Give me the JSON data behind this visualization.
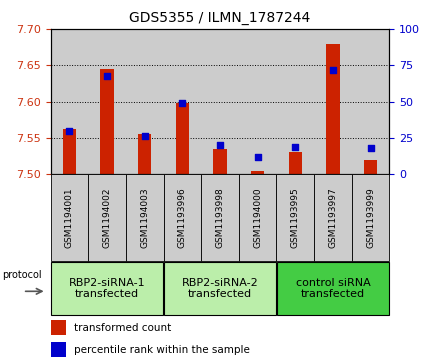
{
  "title": "GDS5355 / ILMN_1787244",
  "samples": [
    "GSM1194001",
    "GSM1194002",
    "GSM1194003",
    "GSM1193996",
    "GSM1193998",
    "GSM1194000",
    "GSM1193995",
    "GSM1193997",
    "GSM1193999"
  ],
  "red_values": [
    7.562,
    7.645,
    7.555,
    7.598,
    7.535,
    7.505,
    7.53,
    7.68,
    7.52
  ],
  "blue_values": [
    30,
    68,
    26,
    49,
    20,
    12,
    19,
    72,
    18
  ],
  "ylim_left": [
    7.5,
    7.7
  ],
  "ylim_right": [
    0,
    100
  ],
  "yticks_left": [
    7.5,
    7.55,
    7.6,
    7.65,
    7.7
  ],
  "yticks_right": [
    0,
    25,
    50,
    75,
    100
  ],
  "groups": [
    {
      "label": "RBP2-siRNA-1\ntransfected",
      "start": 0,
      "end": 3,
      "color": "#bbeeaa"
    },
    {
      "label": "RBP2-siRNA-2\ntransfected",
      "start": 3,
      "end": 6,
      "color": "#bbeeaa"
    },
    {
      "label": "control siRNA\ntransfected",
      "start": 6,
      "end": 9,
      "color": "#44cc44"
    }
  ],
  "protocol_label": "protocol",
  "legend_red": "transformed count",
  "legend_blue": "percentile rank within the sample",
  "bar_color": "#cc2200",
  "dot_color": "#0000cc",
  "col_bg_color": "#cccccc",
  "plot_bg": "#ffffff",
  "bar_width": 0.35,
  "dot_size": 18,
  "left_tick_color": "#cc3311",
  "right_tick_color": "#0000cc",
  "title_fontsize": 10,
  "tick_fontsize": 8,
  "sample_fontsize": 6.5,
  "group_fontsize": 8,
  "legend_fontsize": 7.5
}
